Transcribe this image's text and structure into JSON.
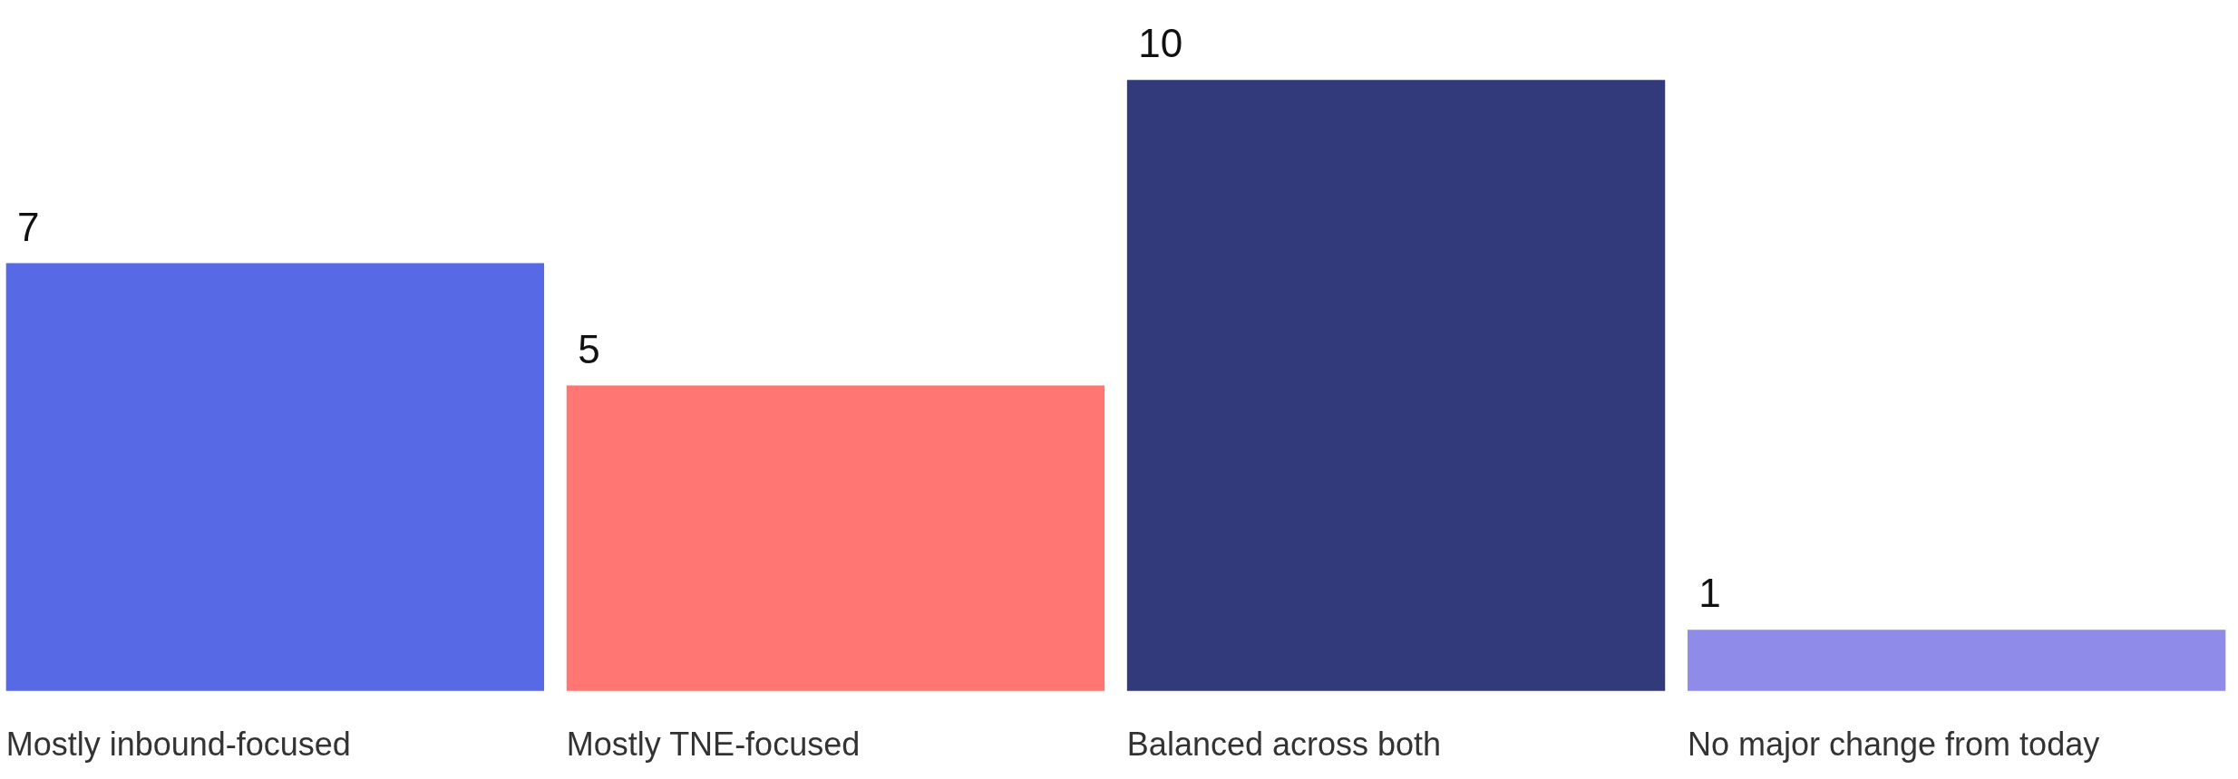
{
  "chart_data": {
    "type": "bar",
    "categories": [
      "Mostly inbound-focused",
      "Mostly TNE-focused",
      "Balanced across both",
      "No major change from today"
    ],
    "values": [
      7,
      5,
      10,
      1
    ],
    "colors": [
      "#5869e6",
      "#ff7673",
      "#333a7b",
      "#8e8ce8"
    ],
    "data_labels": true
  }
}
